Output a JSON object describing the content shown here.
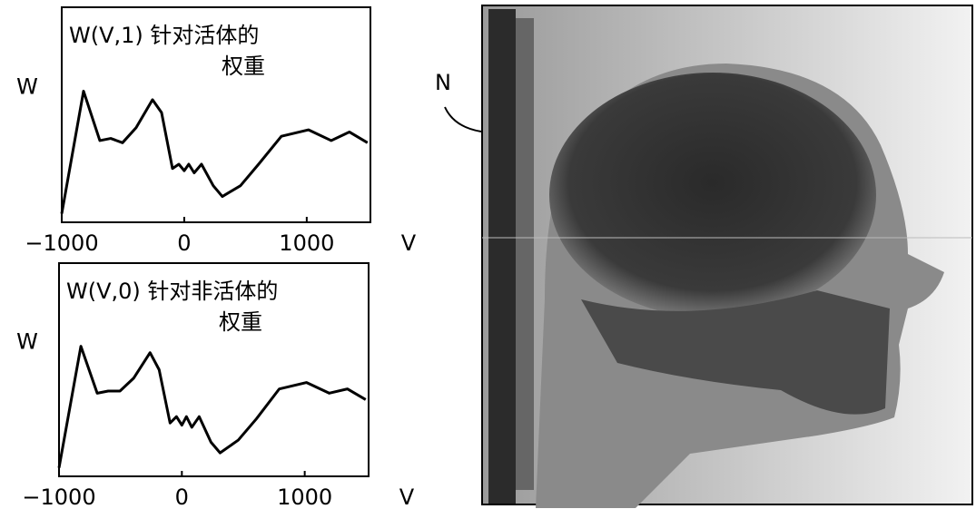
{
  "chart_data": [
    {
      "type": "line",
      "title_lines": [
        "W(V,1) 针对活体的",
        "权重"
      ],
      "ylabel": "W",
      "xlabel": "V",
      "xlim": [
        -1000,
        1520
      ],
      "xticks": [
        {
          "value": -1000,
          "label": "−1000"
        },
        0,
        1000
      ],
      "ylim": [
        0,
        1
      ],
      "x": [
        -1000,
        -822,
        -689,
        -600,
        -504,
        -393,
        -259,
        -185,
        -96,
        -44,
        0,
        37,
        81,
        141,
        237,
        311,
        459,
        607,
        793,
        1015,
        1200,
        1348,
        1496
      ],
      "series": [
        {
          "color": "#000000",
          "values": [
            0.04,
            0.61,
            0.38,
            0.39,
            0.37,
            0.44,
            0.57,
            0.51,
            0.25,
            0.27,
            0.24,
            0.27,
            0.23,
            0.27,
            0.17,
            0.12,
            0.17,
            0.27,
            0.4,
            0.43,
            0.38,
            0.42,
            0.37
          ]
        }
      ]
    },
    {
      "type": "line",
      "title_lines": [
        "W(V,0) 针对非活体的",
        "权重"
      ],
      "ylabel": "W",
      "xlabel": "V",
      "xlim": [
        -1000,
        1520
      ],
      "xticks": [
        {
          "value": -1000,
          "label": "−1000"
        },
        0,
        1000
      ],
      "ylim": [
        0,
        1
      ],
      "x": [
        -1000,
        -822,
        -689,
        -600,
        -504,
        -393,
        -259,
        -185,
        -96,
        -44,
        0,
        37,
        81,
        141,
        237,
        311,
        459,
        607,
        793,
        1015,
        1200,
        1348,
        1496
      ],
      "series": [
        {
          "color": "#000000",
          "values": [
            0.04,
            0.61,
            0.39,
            0.4,
            0.4,
            0.46,
            0.58,
            0.5,
            0.25,
            0.28,
            0.24,
            0.28,
            0.23,
            0.28,
            0.16,
            0.11,
            0.17,
            0.27,
            0.41,
            0.44,
            0.39,
            0.41,
            0.36
          ]
        }
      ]
    }
  ],
  "figure_label": "N"
}
